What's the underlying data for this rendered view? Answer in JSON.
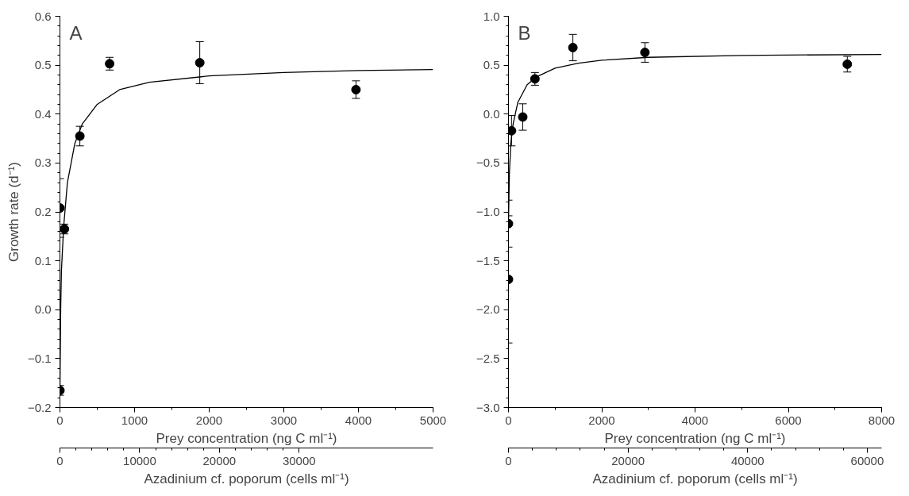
{
  "chart_data": [
    {
      "type": "scatter",
      "title": "A",
      "xlabel": "Prey concentration (ng C ml⁻¹)",
      "ylabel": "Growth rate (d⁻¹)",
      "x2label": "Azadinium cf. poporum (cells ml⁻¹)",
      "xlim": [
        0,
        5000
      ],
      "xticks": [
        0,
        1000,
        2000,
        3000,
        4000,
        5000
      ],
      "ylim": [
        -0.2,
        0.6
      ],
      "yticks": [
        {
          "value": -0.2,
          "label": "−0.2"
        },
        {
          "value": -0.1,
          "label": "−0.1"
        },
        {
          "value": 0,
          "label": "0.0"
        },
        0.1,
        0.2,
        0.3,
        0.4,
        0.5,
        0.6
      ],
      "x2lim": [
        0,
        46800
      ],
      "x2ticks": [
        0,
        10000,
        20000,
        30000
      ],
      "grid": false,
      "series": [
        {
          "marker": "circle",
          "color": "#000000",
          "x": [
            0,
            0,
            60,
            267,
            666,
            1874,
            3967
          ],
          "values": [
            -0.165,
            0.208,
            0.165,
            0.355,
            0.503,
            0.505,
            0.45
          ],
          "errors": [
            0.01,
            0.06,
            0.01,
            0.02,
            0.013,
            0.043,
            0.018
          ]
        },
        {
          "type": "line",
          "marker": "none",
          "color": "#000000",
          "line_style": "solid",
          "x": [
            0,
            10,
            20,
            50,
            100,
            200,
            300,
            500,
            800,
            1200,
            2000,
            3000,
            4000,
            5000
          ],
          "values": [
            -0.17,
            0.0,
            0.08,
            0.17,
            0.26,
            0.34,
            0.38,
            0.42,
            0.45,
            0.465,
            0.478,
            0.485,
            0.489,
            0.491
          ]
        }
      ]
    },
    {
      "type": "scatter",
      "title": "B",
      "xlabel": "Prey concentration (ng C ml⁻¹)",
      "x2label": "Azadinium cf. poporum (cells ml⁻¹)",
      "xlim": [
        0,
        8000
      ],
      "xticks": [
        0,
        2000,
        4000,
        6000,
        8000
      ],
      "ylim": [
        -3.0,
        1.0
      ],
      "yticks": [
        {
          "value": -3,
          "label": "−3.0"
        },
        {
          "value": -2.5,
          "label": "−2.5"
        },
        {
          "value": -2,
          "label": "−2.0"
        },
        {
          "value": -1.5,
          "label": "−1.5"
        },
        {
          "value": -1,
          "label": "−1.0"
        },
        {
          "value": -0.5,
          "label": "−0.5"
        },
        {
          "value": 0,
          "label": "0.0"
        },
        0.5,
        {
          "value": 1,
          "label": "1.0"
        }
      ],
      "x2lim": [
        0,
        62400
      ],
      "x2ticks": [
        0,
        20000,
        40000,
        60000
      ],
      "grid": false,
      "series": [
        {
          "marker": "circle",
          "color": "#000000",
          "x": [
            0,
            0,
            65,
            306,
            567,
            1381,
            2925,
            7264
          ],
          "values": [
            -1.12,
            -1.69,
            -0.17,
            -0.03,
            0.36,
            0.68,
            0.63,
            0.51
          ],
          "errors": [
            0.24,
            0.65,
            0.155,
            0.135,
            0.065,
            0.135,
            0.1,
            0.08
          ]
        },
        {
          "type": "line",
          "marker": "none",
          "color": "#000000",
          "line_style": "solid",
          "x": [
            0,
            20,
            50,
            100,
            200,
            400,
            600,
            1000,
            1500,
            2000,
            3000,
            5000,
            8000
          ],
          "values": [
            -1.1,
            -0.6,
            -0.3,
            -0.1,
            0.12,
            0.3,
            0.38,
            0.47,
            0.52,
            0.55,
            0.58,
            0.6,
            0.61
          ]
        }
      ]
    }
  ]
}
